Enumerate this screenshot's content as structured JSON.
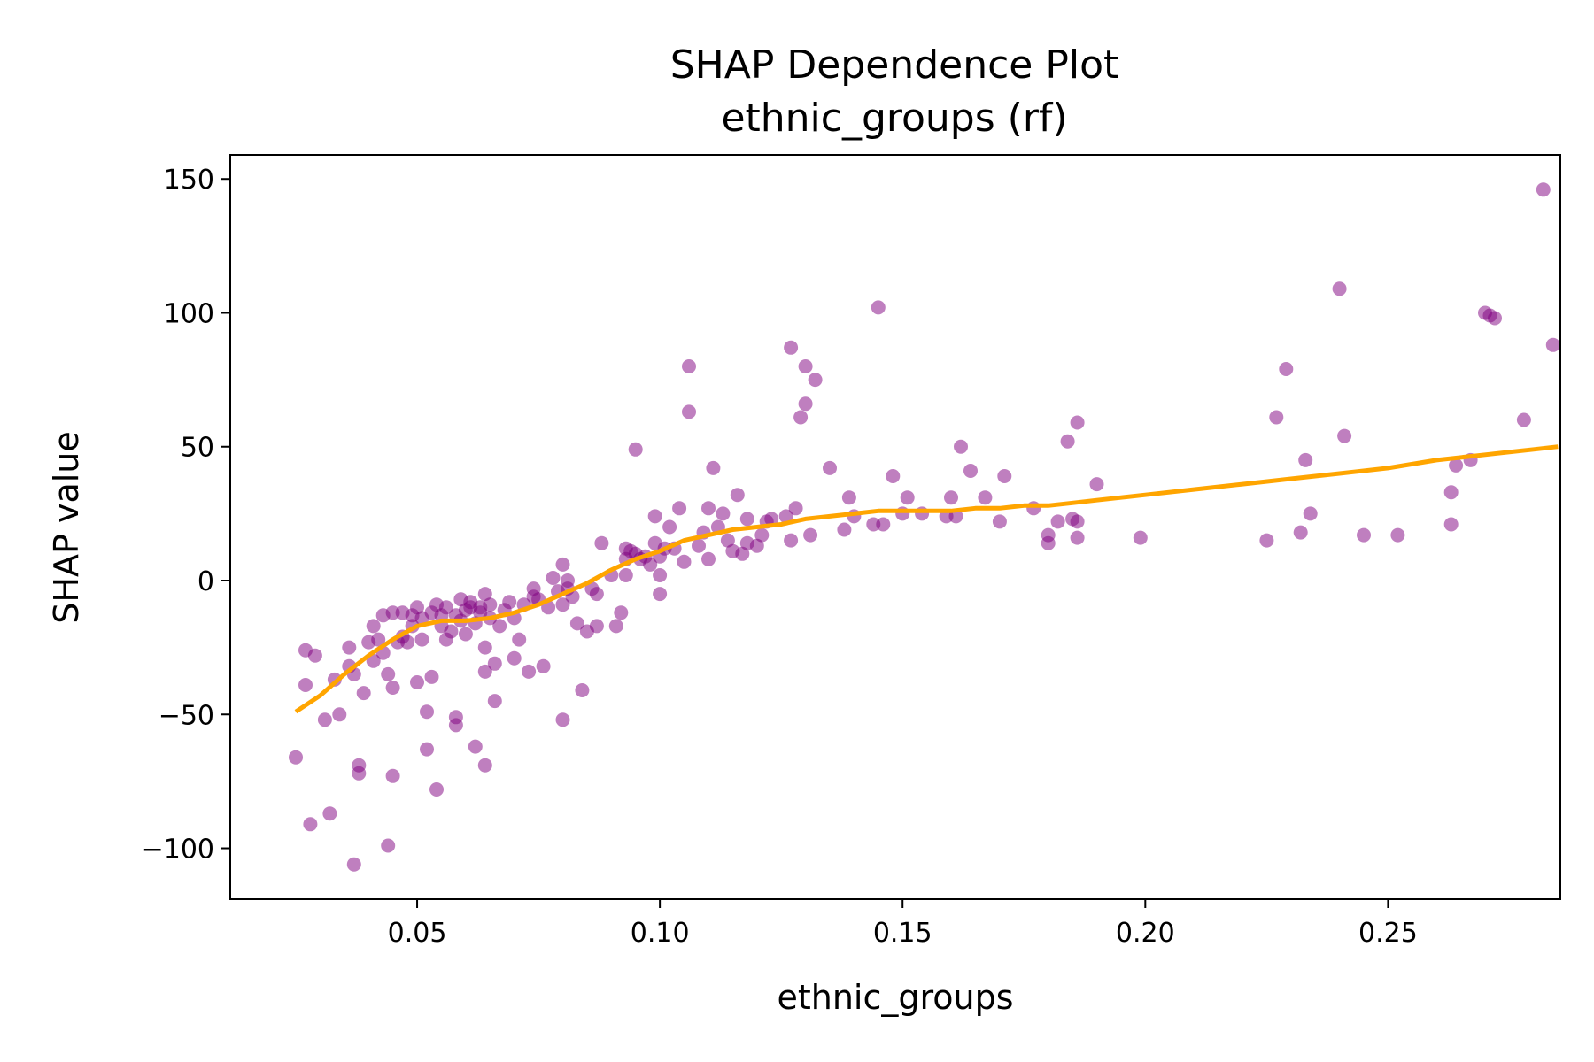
{
  "chart_data": {
    "type": "scatter",
    "title": "SHAP Dependence Plot",
    "subtitle": "ethnic_groups (rf)",
    "xlabel": "ethnic_groups",
    "ylabel": "SHAP value",
    "xlim": [
      0.0115,
      0.2855
    ],
    "ylim": [
      -119,
      159
    ],
    "xticks": [
      0.05,
      0.1,
      0.15,
      0.2,
      0.25
    ],
    "xtick_labels": [
      "0.05",
      "0.10",
      "0.15",
      "0.20",
      "0.25"
    ],
    "yticks": [
      -100,
      -50,
      0,
      50,
      100,
      150
    ],
    "ytick_labels": [
      "−100",
      "−50",
      "0",
      "50",
      "100",
      "150"
    ],
    "grid": false,
    "colors": {
      "points": "#800080",
      "trend": "#FFA500"
    },
    "series": [
      {
        "kind": "scatter",
        "points": [
          [
            0.025,
            -66
          ],
          [
            0.027,
            -26
          ],
          [
            0.027,
            -39
          ],
          [
            0.028,
            -91
          ],
          [
            0.029,
            -28
          ],
          [
            0.031,
            -52
          ],
          [
            0.032,
            -87
          ],
          [
            0.033,
            -37
          ],
          [
            0.034,
            -50
          ],
          [
            0.036,
            -25
          ],
          [
            0.036,
            -32
          ],
          [
            0.037,
            -35
          ],
          [
            0.037,
            -106
          ],
          [
            0.038,
            -72
          ],
          [
            0.038,
            -69
          ],
          [
            0.039,
            -42
          ],
          [
            0.04,
            -23
          ],
          [
            0.041,
            -30
          ],
          [
            0.041,
            -17
          ],
          [
            0.042,
            -22
          ],
          [
            0.043,
            -13
          ],
          [
            0.043,
            -27
          ],
          [
            0.044,
            -99
          ],
          [
            0.044,
            -35
          ],
          [
            0.045,
            -40
          ],
          [
            0.045,
            -73
          ],
          [
            0.045,
            -12
          ],
          [
            0.046,
            -23
          ],
          [
            0.047,
            -12
          ],
          [
            0.047,
            -21
          ],
          [
            0.048,
            -23
          ],
          [
            0.049,
            -13
          ],
          [
            0.049,
            -17
          ],
          [
            0.05,
            -38
          ],
          [
            0.05,
            -10
          ],
          [
            0.051,
            -14
          ],
          [
            0.051,
            -22
          ],
          [
            0.052,
            -49
          ],
          [
            0.052,
            -63
          ],
          [
            0.053,
            -36
          ],
          [
            0.053,
            -12
          ],
          [
            0.054,
            -78
          ],
          [
            0.054,
            -9
          ],
          [
            0.055,
            -13
          ],
          [
            0.055,
            -17
          ],
          [
            0.056,
            -22
          ],
          [
            0.056,
            -10
          ],
          [
            0.057,
            -19
          ],
          [
            0.058,
            -54
          ],
          [
            0.058,
            -51
          ],
          [
            0.058,
            -13
          ],
          [
            0.059,
            -7
          ],
          [
            0.059,
            -15
          ],
          [
            0.06,
            -20
          ],
          [
            0.06,
            -11
          ],
          [
            0.061,
            -10
          ],
          [
            0.061,
            -8
          ],
          [
            0.062,
            -62
          ],
          [
            0.062,
            -16
          ],
          [
            0.063,
            -12
          ],
          [
            0.063,
            -10
          ],
          [
            0.064,
            -25
          ],
          [
            0.064,
            -34
          ],
          [
            0.064,
            -69
          ],
          [
            0.064,
            -5
          ],
          [
            0.065,
            -9
          ],
          [
            0.065,
            -14
          ],
          [
            0.066,
            -45
          ],
          [
            0.066,
            -31
          ],
          [
            0.067,
            -17
          ],
          [
            0.068,
            -11
          ],
          [
            0.069,
            -8
          ],
          [
            0.07,
            -29
          ],
          [
            0.07,
            -14
          ],
          [
            0.071,
            -22
          ],
          [
            0.072,
            -9
          ],
          [
            0.073,
            -34
          ],
          [
            0.074,
            -6
          ],
          [
            0.074,
            -3
          ],
          [
            0.075,
            -7
          ],
          [
            0.076,
            -32
          ],
          [
            0.077,
            -10
          ],
          [
            0.078,
            1
          ],
          [
            0.079,
            -4
          ],
          [
            0.08,
            -9
          ],
          [
            0.08,
            6
          ],
          [
            0.08,
            -52
          ],
          [
            0.081,
            0
          ],
          [
            0.081,
            -3
          ],
          [
            0.082,
            -6
          ],
          [
            0.083,
            -16
          ],
          [
            0.084,
            -41
          ],
          [
            0.085,
            -19
          ],
          [
            0.086,
            -3
          ],
          [
            0.087,
            -17
          ],
          [
            0.087,
            -5
          ],
          [
            0.088,
            14
          ],
          [
            0.09,
            2
          ],
          [
            0.091,
            -17
          ],
          [
            0.092,
            -12
          ],
          [
            0.093,
            2
          ],
          [
            0.093,
            12
          ],
          [
            0.093,
            8
          ],
          [
            0.094,
            11
          ],
          [
            0.095,
            10
          ],
          [
            0.095,
            49
          ],
          [
            0.096,
            8
          ],
          [
            0.097,
            9
          ],
          [
            0.098,
            6
          ],
          [
            0.099,
            14
          ],
          [
            0.099,
            24
          ],
          [
            0.1,
            2
          ],
          [
            0.1,
            -5
          ],
          [
            0.1,
            9
          ],
          [
            0.101,
            12
          ],
          [
            0.102,
            20
          ],
          [
            0.103,
            12
          ],
          [
            0.104,
            27
          ],
          [
            0.105,
            7
          ],
          [
            0.106,
            63
          ],
          [
            0.106,
            80
          ],
          [
            0.108,
            13
          ],
          [
            0.109,
            18
          ],
          [
            0.11,
            8
          ],
          [
            0.11,
            27
          ],
          [
            0.111,
            42
          ],
          [
            0.112,
            20
          ],
          [
            0.113,
            25
          ],
          [
            0.114,
            15
          ],
          [
            0.115,
            11
          ],
          [
            0.116,
            32
          ],
          [
            0.117,
            10
          ],
          [
            0.118,
            14
          ],
          [
            0.118,
            23
          ],
          [
            0.12,
            13
          ],
          [
            0.121,
            17
          ],
          [
            0.122,
            22
          ],
          [
            0.123,
            23
          ],
          [
            0.126,
            24
          ],
          [
            0.127,
            15
          ],
          [
            0.127,
            87
          ],
          [
            0.128,
            27
          ],
          [
            0.129,
            61
          ],
          [
            0.13,
            66
          ],
          [
            0.13,
            80
          ],
          [
            0.131,
            17
          ],
          [
            0.132,
            75
          ],
          [
            0.135,
            42
          ],
          [
            0.138,
            19
          ],
          [
            0.139,
            31
          ],
          [
            0.14,
            24
          ],
          [
            0.144,
            21
          ],
          [
            0.145,
            102
          ],
          [
            0.146,
            21
          ],
          [
            0.148,
            39
          ],
          [
            0.15,
            25
          ],
          [
            0.151,
            31
          ],
          [
            0.154,
            25
          ],
          [
            0.159,
            24
          ],
          [
            0.16,
            31
          ],
          [
            0.161,
            24
          ],
          [
            0.162,
            50
          ],
          [
            0.164,
            41
          ],
          [
            0.167,
            31
          ],
          [
            0.17,
            22
          ],
          [
            0.171,
            39
          ],
          [
            0.177,
            27
          ],
          [
            0.18,
            17
          ],
          [
            0.18,
            14
          ],
          [
            0.182,
            22
          ],
          [
            0.184,
            52
          ],
          [
            0.185,
            23
          ],
          [
            0.186,
            16
          ],
          [
            0.186,
            22
          ],
          [
            0.186,
            59
          ],
          [
            0.19,
            36
          ],
          [
            0.199,
            16
          ],
          [
            0.225,
            15
          ],
          [
            0.227,
            61
          ],
          [
            0.229,
            79
          ],
          [
            0.232,
            18
          ],
          [
            0.233,
            45
          ],
          [
            0.234,
            25
          ],
          [
            0.24,
            109
          ],
          [
            0.241,
            54
          ],
          [
            0.245,
            17
          ],
          [
            0.252,
            17
          ],
          [
            0.263,
            21
          ],
          [
            0.263,
            33
          ],
          [
            0.264,
            43
          ],
          [
            0.267,
            45
          ],
          [
            0.27,
            100
          ],
          [
            0.271,
            99
          ],
          [
            0.272,
            98
          ],
          [
            0.278,
            60
          ],
          [
            0.282,
            146
          ],
          [
            0.284,
            88
          ]
        ]
      },
      {
        "kind": "line",
        "points": [
          [
            0.025,
            -49
          ],
          [
            0.03,
            -43
          ],
          [
            0.035,
            -35
          ],
          [
            0.04,
            -28
          ],
          [
            0.045,
            -22
          ],
          [
            0.05,
            -17
          ],
          [
            0.055,
            -15
          ],
          [
            0.06,
            -15
          ],
          [
            0.065,
            -14
          ],
          [
            0.07,
            -12
          ],
          [
            0.075,
            -9
          ],
          [
            0.08,
            -5
          ],
          [
            0.085,
            -1
          ],
          [
            0.09,
            4
          ],
          [
            0.095,
            8
          ],
          [
            0.1,
            11
          ],
          [
            0.105,
            15
          ],
          [
            0.11,
            17
          ],
          [
            0.115,
            19
          ],
          [
            0.12,
            20
          ],
          [
            0.125,
            21
          ],
          [
            0.13,
            23
          ],
          [
            0.135,
            24
          ],
          [
            0.14,
            25
          ],
          [
            0.145,
            26
          ],
          [
            0.15,
            26
          ],
          [
            0.155,
            26
          ],
          [
            0.16,
            26
          ],
          [
            0.165,
            27
          ],
          [
            0.17,
            27
          ],
          [
            0.175,
            28
          ],
          [
            0.18,
            28
          ],
          [
            0.185,
            29
          ],
          [
            0.19,
            30
          ],
          [
            0.195,
            31
          ],
          [
            0.2,
            32
          ],
          [
            0.21,
            34
          ],
          [
            0.22,
            36
          ],
          [
            0.23,
            38
          ],
          [
            0.24,
            40
          ],
          [
            0.25,
            42
          ],
          [
            0.26,
            45
          ],
          [
            0.27,
            47
          ],
          [
            0.28,
            49
          ],
          [
            0.285,
            50
          ]
        ]
      }
    ]
  }
}
